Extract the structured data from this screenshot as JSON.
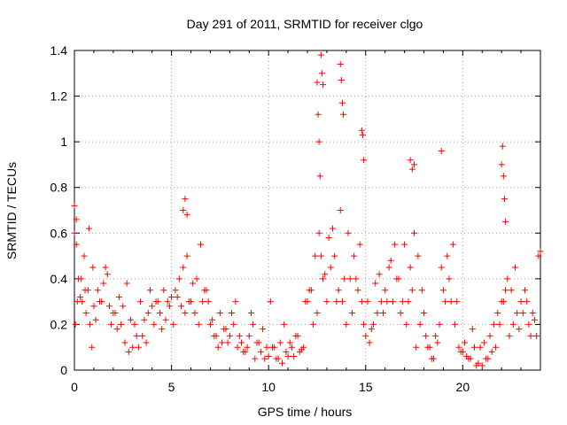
{
  "chart_data": {
    "type": "scatter",
    "title": "Day 291 of 2011, SRMTID for receiver clgo",
    "xlabel": "GPS time / hours",
    "ylabel": "SRMTID / TECUs",
    "xlim": [
      0,
      24
    ],
    "ylim": [
      0,
      1.4
    ],
    "x_ticks": [
      0,
      5,
      10,
      15,
      20
    ],
    "x_tick_labels": [
      "0",
      "5",
      "10",
      "15",
      "20"
    ],
    "y_ticks": [
      0,
      0.2,
      0.4,
      0.6,
      0.8,
      1,
      1.2,
      1.4
    ],
    "y_tick_labels": [
      "0",
      "0.2",
      "0.4",
      "0.6",
      "0.8",
      "1",
      "1.2",
      "1.4"
    ],
    "grid": true,
    "marker": "+",
    "series": [
      {
        "name": "SRMTID",
        "color": "#ff0000",
        "x": [
          0.0,
          0.1,
          0.2,
          0.3,
          0.4,
          0.5,
          0.6,
          0.7,
          0.8,
          0.9,
          1.0,
          1.1,
          1.2,
          1.4,
          1.6,
          1.8,
          2.0,
          2.2,
          2.4,
          2.6,
          2.8,
          3.0,
          3.2,
          3.4,
          3.6,
          3.8,
          4.0,
          4.2,
          4.4,
          4.6,
          4.8,
          5.0,
          5.2,
          5.4,
          5.6,
          5.8,
          6.0,
          6.2,
          6.4,
          6.6,
          6.8,
          7.0,
          7.2,
          7.4,
          7.6,
          7.8,
          8.0,
          8.2,
          8.4,
          8.6,
          8.8,
          9.0,
          9.2,
          9.4,
          9.6,
          9.8,
          10.0,
          10.2,
          10.4,
          10.6,
          10.8,
          11.0,
          11.2,
          11.4,
          11.6,
          11.8,
          12.0,
          12.2,
          12.4,
          12.6,
          12.8,
          13.0,
          13.2,
          13.4,
          13.6,
          13.8,
          14.0,
          14.2,
          14.4,
          14.6,
          14.8,
          15.0,
          15.2,
          15.4,
          15.6,
          15.8,
          16.0,
          16.2,
          16.4,
          16.6,
          16.8,
          17.0,
          17.2,
          17.4,
          17.6,
          17.8,
          18.0,
          18.2,
          18.4,
          18.6,
          18.8,
          19.0,
          19.2,
          19.4,
          19.6,
          19.8,
          20.0,
          20.2,
          20.4,
          20.6,
          20.8,
          21.0,
          21.2,
          21.4,
          21.6,
          21.8,
          22.0,
          22.2,
          22.4,
          22.6,
          22.8,
          23.0,
          23.2,
          23.4,
          23.6,
          23.8,
          0.05,
          0.15,
          0.35,
          0.55,
          0.75,
          0.95,
          1.3,
          1.5,
          1.7,
          1.9,
          2.1,
          2.3,
          2.5,
          2.7,
          2.9,
          3.1,
          3.3,
          3.5,
          3.7,
          3.9,
          4.1,
          4.3,
          4.5,
          4.7,
          4.9,
          5.1,
          5.3,
          5.5,
          5.7,
          5.9,
          6.1,
          6.3,
          6.5,
          6.7,
          6.9,
          7.1,
          7.3,
          7.5,
          7.7,
          7.9,
          8.1,
          8.3,
          8.5,
          8.7,
          8.9,
          9.1,
          9.3,
          9.5,
          9.7,
          9.9,
          10.1,
          10.3,
          10.5,
          10.7,
          10.9,
          11.1,
          11.3,
          11.5,
          11.7,
          11.9,
          12.1,
          12.3,
          12.5,
          12.7,
          12.9,
          13.1,
          13.3,
          13.5,
          13.7,
          13.9,
          14.1,
          14.3,
          14.5,
          14.7,
          14.9,
          15.1,
          15.3,
          15.5,
          15.7,
          15.9,
          16.1,
          16.3,
          16.5,
          16.7,
          16.9,
          17.1,
          17.3,
          17.5,
          17.7,
          17.9,
          18.1,
          18.3,
          18.5,
          18.7,
          18.9,
          19.1,
          19.3,
          19.5,
          19.7,
          19.9,
          20.1,
          20.3,
          20.5,
          20.7,
          20.9,
          21.1,
          21.3,
          21.5,
          21.7,
          21.9,
          22.1,
          22.3,
          22.5,
          22.7,
          22.9,
          23.1,
          23.3,
          23.5,
          23.7,
          23.9,
          12.5,
          12.55,
          12.6,
          12.65,
          12.7,
          12.75,
          12.8,
          13.7,
          13.75,
          13.8,
          13.85,
          14.8,
          14.85,
          14.9,
          22.0,
          22.05,
          22.1,
          22.15,
          22.2,
          17.3,
          17.4,
          17.5,
          18.9,
          5.6,
          5.7,
          5.8,
          0.0,
          0.1,
          24.0
        ],
        "y": [
          0.72,
          0.55,
          0.4,
          0.32,
          0.3,
          0.5,
          0.25,
          0.35,
          0.2,
          0.1,
          0.28,
          0.22,
          0.35,
          0.3,
          0.45,
          0.28,
          0.25,
          0.18,
          0.2,
          0.12,
          0.08,
          0.1,
          0.15,
          0.3,
          0.22,
          0.25,
          0.28,
          0.3,
          0.25,
          0.35,
          0.3,
          0.32,
          0.35,
          0.4,
          0.45,
          0.5,
          0.3,
          0.25,
          0.2,
          0.3,
          0.35,
          0.2,
          0.15,
          0.1,
          0.12,
          0.18,
          0.15,
          0.2,
          0.1,
          0.12,
          0.08,
          0.15,
          0.2,
          0.12,
          0.08,
          0.05,
          0.06,
          0.1,
          0.05,
          0.12,
          0.2,
          0.06,
          0.1,
          0.15,
          0.08,
          0.1,
          0.3,
          0.35,
          0.5,
          0.6,
          0.4,
          0.3,
          0.45,
          0.5,
          0.35,
          0.3,
          0.2,
          0.4,
          0.5,
          0.35,
          0.3,
          0.15,
          0.12,
          0.2,
          0.25,
          0.3,
          0.35,
          0.45,
          0.3,
          0.4,
          0.25,
          0.55,
          0.3,
          0.35,
          0.1,
          0.2,
          0.25,
          0.1,
          0.05,
          0.15,
          0.2,
          0.35,
          0.5,
          0.3,
          0.2,
          0.1,
          0.08,
          0.06,
          0.05,
          0.1,
          0.03,
          0.02,
          0.05,
          0.15,
          0.2,
          0.25,
          0.3,
          0.35,
          0.15,
          0.2,
          0.25,
          0.3,
          0.35,
          0.2,
          0.25,
          0.15,
          0.2,
          0.3,
          0.4,
          0.35,
          0.62,
          0.45,
          0.3,
          0.38,
          0.42,
          0.2,
          0.25,
          0.32,
          0.28,
          0.38,
          0.22,
          0.2,
          0.1,
          0.15,
          0.12,
          0.35,
          0.2,
          0.3,
          0.18,
          0.22,
          0.28,
          0.2,
          0.32,
          0.28,
          0.25,
          0.3,
          0.38,
          0.4,
          0.55,
          0.35,
          0.3,
          0.22,
          0.15,
          0.25,
          0.18,
          0.12,
          0.25,
          0.3,
          0.15,
          0.08,
          0.1,
          0.25,
          0.05,
          0.12,
          0.18,
          0.1,
          0.3,
          0.1,
          0.05,
          0.03,
          0.08,
          0.12,
          0.06,
          0.15,
          0.09,
          0.3,
          0.35,
          0.2,
          0.25,
          0.5,
          0.42,
          0.58,
          0.62,
          0.3,
          0.7,
          0.4,
          0.6,
          0.25,
          0.4,
          0.55,
          0.2,
          0.3,
          0.18,
          0.38,
          0.42,
          0.25,
          0.3,
          0.48,
          0.55,
          0.4,
          0.3,
          0.2,
          0.45,
          0.6,
          0.5,
          0.35,
          0.15,
          0.1,
          0.05,
          0.12,
          0.45,
          0.3,
          0.4,
          0.55,
          0.3,
          0.08,
          0.12,
          0.05,
          0.18,
          0.02,
          0.1,
          0.12,
          0.05,
          0.08,
          0.1,
          0.2,
          0.3,
          0.4,
          0.35,
          0.45,
          0.18,
          0.25,
          0.3,
          0.15,
          0.22,
          0.5,
          1.26,
          1.12,
          1.0,
          0.85,
          1.38,
          1.3,
          1.25,
          1.34,
          1.27,
          1.17,
          1.12,
          1.05,
          1.03,
          0.92,
          0.9,
          0.98,
          0.85,
          0.75,
          0.65,
          0.92,
          0.88,
          0.9,
          0.96,
          0.7,
          0.75,
          0.68,
          0.6,
          0.66,
          0.52
        ]
      }
    ]
  }
}
